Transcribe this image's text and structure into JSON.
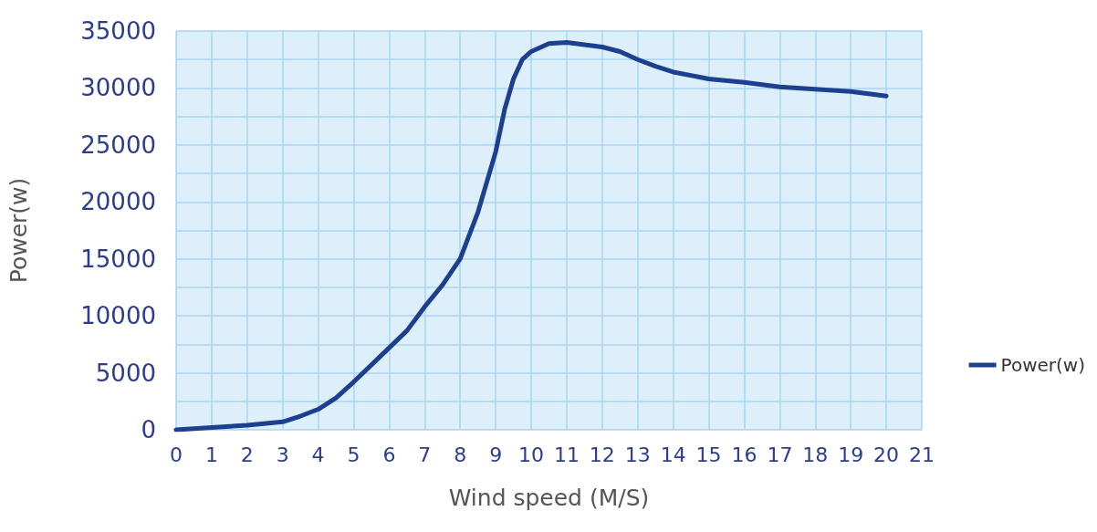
{
  "chart_data": {
    "type": "line",
    "xlabel": "Wind speed (M/S)",
    "ylabel": "Power(w)",
    "xlim": [
      0,
      21
    ],
    "xticks": [
      0,
      1,
      2,
      3,
      4,
      5,
      6,
      7,
      8,
      9,
      10,
      11,
      12,
      13,
      14,
      15,
      16,
      17,
      18,
      19,
      20,
      21
    ],
    "ylim": [
      0,
      35000
    ],
    "yticks": [
      0,
      5000,
      10000,
      15000,
      20000,
      25000,
      30000,
      35000
    ],
    "grid": true,
    "legend": "right",
    "marker": "none",
    "line_style": "solid",
    "series": [
      {
        "name": "Power(w)",
        "color": "#1c3f8f",
        "x": [
          0,
          1,
          2,
          3,
          3.5,
          4,
          4.5,
          5,
          5.5,
          6,
          6.5,
          7,
          7.5,
          8,
          8.5,
          9,
          9.25,
          9.5,
          9.75,
          10,
          10.5,
          11,
          12,
          12.5,
          13,
          13.5,
          14,
          15,
          16,
          17,
          18,
          19,
          20
        ],
        "values": [
          0,
          200,
          400,
          700,
          1200,
          1800,
          2800,
          4200,
          5700,
          7200,
          8700,
          10800,
          12700,
          15000,
          19100,
          24400,
          28100,
          30800,
          32500,
          33200,
          33900,
          34000,
          33600,
          33200,
          32500,
          31900,
          31400,
          30800,
          30500,
          30100,
          29900,
          29700,
          29300
        ]
      }
    ]
  }
}
